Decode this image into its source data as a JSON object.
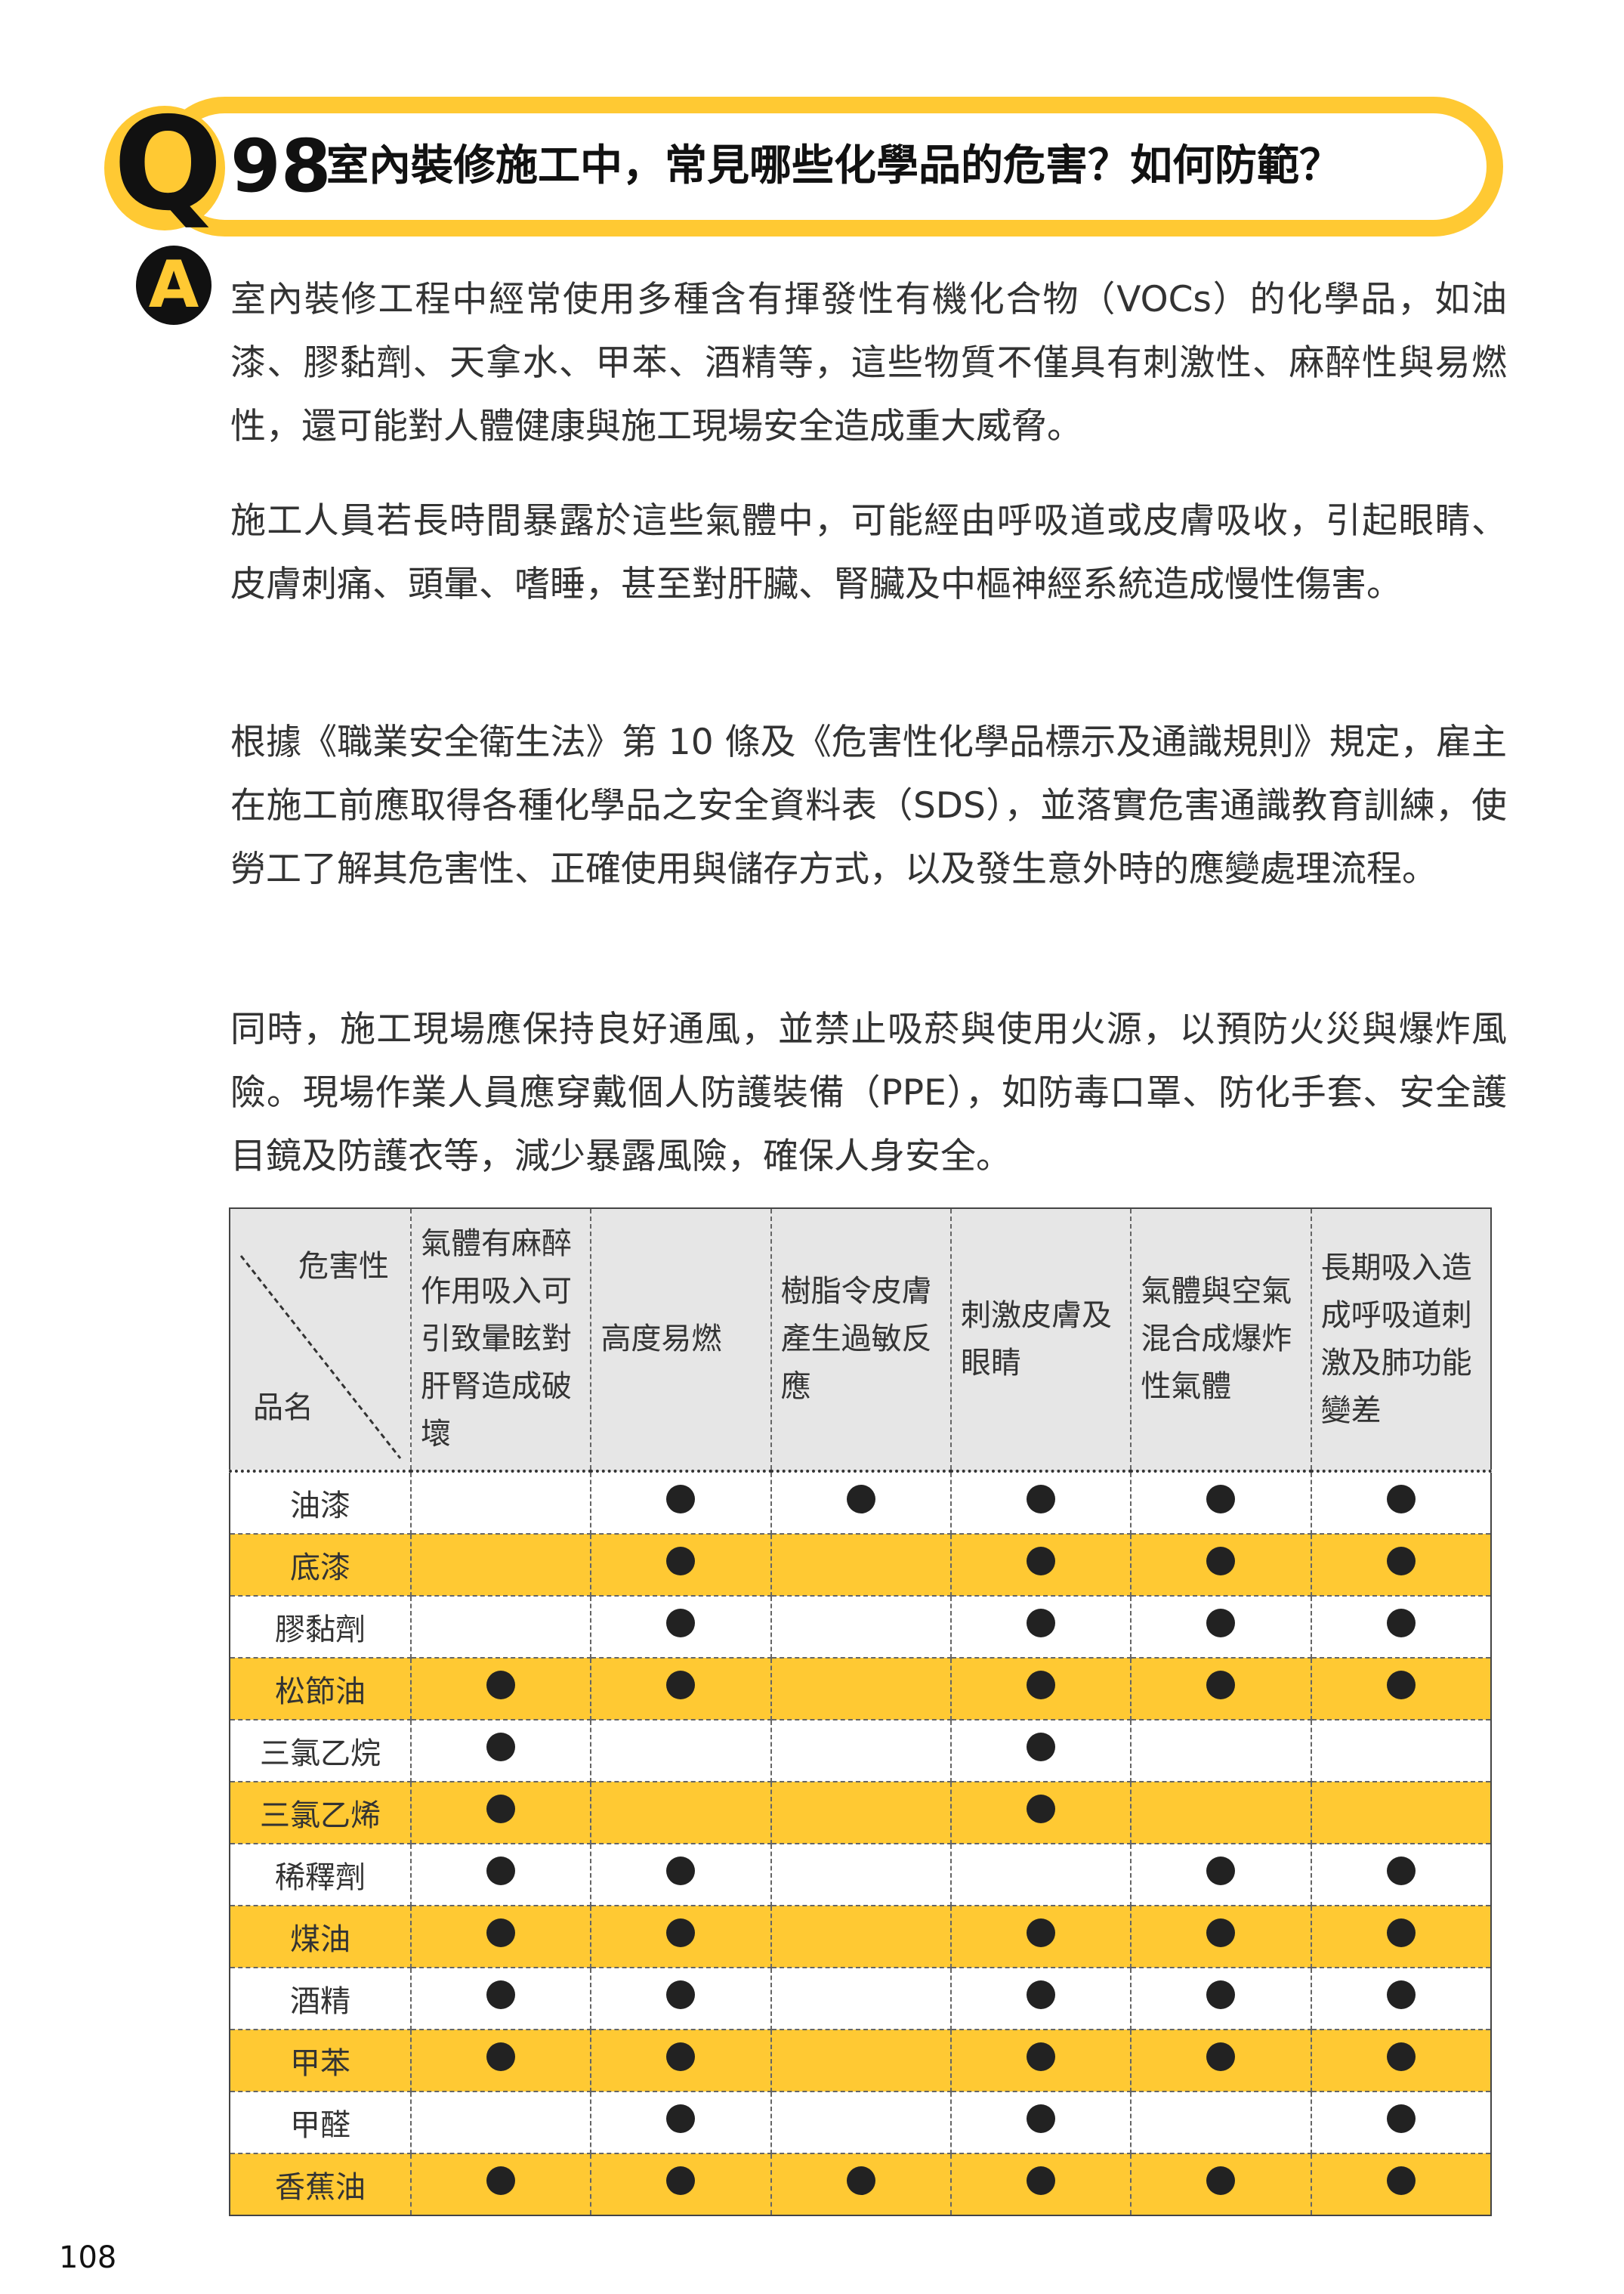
{
  "question": {
    "letter": "Q",
    "number": "98",
    "title": "室內裝修施工中，常見哪些化學品的危害？如何防範？"
  },
  "answer": {
    "letter": "A",
    "paragraphs": [
      "室內裝修工程中經常使用多種含有揮發性有機化合物（VOCs）的化學品，如油漆、膠黏劑、天拿水、甲苯、酒精等，這些物質不僅具有刺激性、麻醉性與易燃性，還可能對人體健康與施工現場安全造成重大威脅。",
      "施工人員若長時間暴露於這些氣體中，可能經由呼吸道或皮膚吸收，引起眼睛、皮膚刺痛、頭暈、嗜睡，甚至對肝臟、腎臟及中樞神經系統造成慢性傷害。",
      "根據《職業安全衛生法》第 10 條及《危害性化學品標示及通識規則》規定，雇主在施工前應取得各種化學品之安全資料表（SDS），並落實危害通識教育訓練，使勞工了解其危害性、正確使用與儲存方式，以及發生意外時的應變處理流程。",
      "同時，施工現場應保持良好通風，並禁止吸菸與使用火源，以預防火災與爆炸風險。現場作業人員應穿戴個人防護裝備（PPE），如防毒口罩、防化手套、安全護目鏡及防護衣等，減少暴露風險，確保人身安全。"
    ]
  },
  "table": {
    "corner_top": "危害性",
    "corner_bottom": "品名",
    "headers": [
      "氣體有麻醉作用吸入可引致暈眩對肝腎造成破壞",
      "高度易燃",
      "樹脂令皮膚產生過敏反應",
      "刺激皮膚及眼睛",
      "氣體與空氣混合成爆炸性氣體",
      "長期吸入造成呼吸道刺激及肺功能變差"
    ],
    "rows": [
      {
        "name": "油漆",
        "marks": [
          0,
          1,
          1,
          1,
          1,
          1
        ]
      },
      {
        "name": "底漆",
        "marks": [
          0,
          1,
          0,
          1,
          1,
          1
        ]
      },
      {
        "name": "膠黏劑",
        "marks": [
          0,
          1,
          0,
          1,
          1,
          1
        ]
      },
      {
        "name": "松節油",
        "marks": [
          1,
          1,
          0,
          1,
          1,
          1
        ]
      },
      {
        "name": "三氯乙烷",
        "marks": [
          1,
          0,
          0,
          1,
          0,
          0
        ]
      },
      {
        "name": "三氯乙烯",
        "marks": [
          1,
          0,
          0,
          1,
          0,
          0
        ]
      },
      {
        "name": "稀釋劑",
        "marks": [
          1,
          1,
          0,
          0,
          1,
          1
        ]
      },
      {
        "name": "煤油",
        "marks": [
          1,
          1,
          0,
          1,
          1,
          1
        ]
      },
      {
        "name": "酒精",
        "marks": [
          1,
          1,
          0,
          1,
          1,
          1
        ]
      },
      {
        "name": "甲苯",
        "marks": [
          1,
          1,
          0,
          1,
          1,
          1
        ]
      },
      {
        "name": "甲醛",
        "marks": [
          0,
          1,
          0,
          1,
          0,
          1
        ]
      },
      {
        "name": "香蕉油",
        "marks": [
          1,
          1,
          1,
          1,
          1,
          1
        ]
      }
    ],
    "colors": {
      "accent": "#FFC933",
      "header_bg": "#E6E6E6",
      "mark": "#222222"
    }
  },
  "page_number": "108"
}
